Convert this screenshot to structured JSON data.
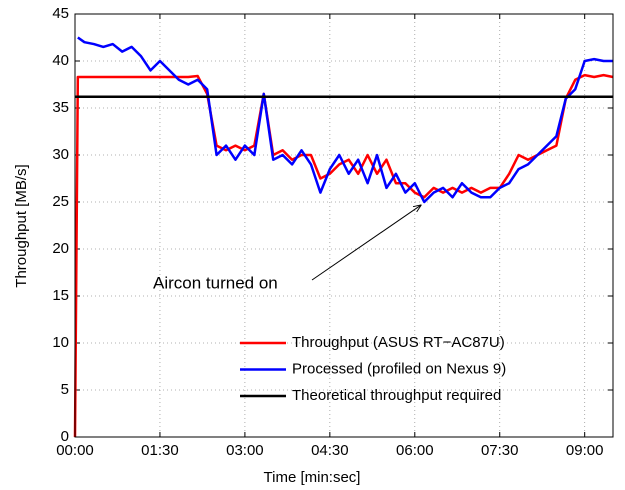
{
  "chart_data": {
    "type": "line",
    "x_label": "Time [min:sec]",
    "y_label": "Throughput [MB/s]",
    "x": [
      0,
      3,
      10,
      20,
      30,
      40,
      50,
      60,
      70,
      80,
      90,
      100,
      110,
      120,
      130,
      140,
      150,
      160,
      170,
      180,
      190,
      200,
      210,
      220,
      230,
      240,
      250,
      260,
      270,
      280,
      290,
      300,
      310,
      320,
      330,
      340,
      350,
      360,
      370,
      380,
      390,
      400,
      410,
      420,
      430,
      440,
      450,
      460,
      470,
      480,
      490,
      500,
      510,
      520,
      530,
      540,
      550,
      560,
      570
    ],
    "series": [
      {
        "name": "Throughput (ASUS RT−AC87U)",
        "color": "#ff0000",
        "values": [
          0,
          38.3,
          38.3,
          38.3,
          38.3,
          38.3,
          38.3,
          38.3,
          38.3,
          38.3,
          38.3,
          38.3,
          38.3,
          38.3,
          38.4,
          36.5,
          31,
          30.5,
          31,
          30.5,
          31,
          36.5,
          30,
          30.5,
          29.5,
          30,
          30,
          27.5,
          28,
          29,
          29.5,
          28,
          30,
          28,
          29.5,
          27,
          27,
          26,
          25.5,
          26.5,
          26,
          26.5,
          26,
          26.5,
          26,
          26.5,
          26.5,
          28,
          30,
          29.5,
          30,
          30.5,
          31,
          36,
          38,
          38.5,
          38.3,
          38.5,
          38.3
        ]
      },
      {
        "name": "Processed (profiled on Nexus 9)",
        "color": "#0000ff",
        "values": [
          null,
          42.5,
          42,
          41.8,
          41.5,
          41.8,
          41,
          41.5,
          40.5,
          39,
          40,
          39,
          38,
          37.5,
          38,
          37,
          30,
          31,
          29.5,
          31,
          30,
          36.5,
          29.5,
          30,
          29,
          30.5,
          29,
          26,
          28.5,
          30,
          28,
          29.5,
          27,
          30,
          26.5,
          28,
          26,
          27,
          25,
          26,
          26.5,
          25.5,
          27,
          26,
          25.5,
          25.5,
          26.5,
          27,
          28.5,
          29,
          30,
          31,
          32,
          36,
          37,
          40,
          40.2,
          40,
          40
        ]
      },
      {
        "name": "Theoretical throughput required",
        "color": "#000000",
        "x": [
          0,
          570
        ],
        "values": [
          36.2,
          36.2
        ]
      }
    ],
    "annotation": {
      "text": "Aircon turned on",
      "x": 367,
      "y": 24.7
    },
    "xlim": [
      0,
      570
    ],
    "xticks": [
      {
        "value": 0,
        "label": "00:00"
      },
      {
        "value": 90,
        "label": "01:30"
      },
      {
        "value": 180,
        "label": "03:00"
      },
      {
        "value": 270,
        "label": "04:30"
      },
      {
        "value": 360,
        "label": "06:00"
      },
      {
        "value": 450,
        "label": "07:30"
      },
      {
        "value": 540,
        "label": "09:00"
      }
    ],
    "ylim": [
      0,
      45
    ],
    "yticks": [
      0,
      5,
      10,
      15,
      20,
      25,
      30,
      35,
      40,
      45
    ],
    "grid": true,
    "legend": "lower right"
  }
}
